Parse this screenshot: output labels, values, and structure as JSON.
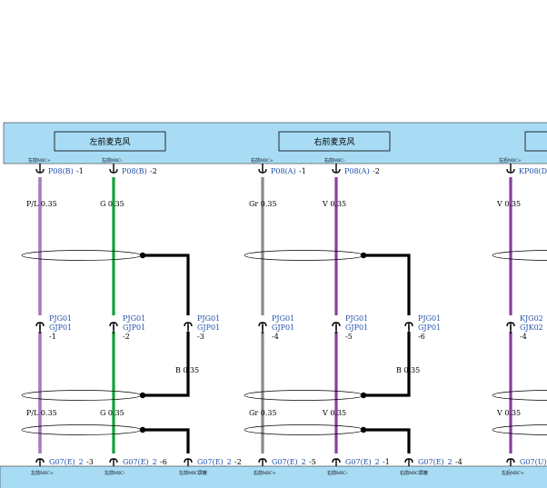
{
  "colors": {
    "header_fill": "#a8dcf5",
    "wire_PL": "#8a4fa0",
    "wire_PL_stripe": "#bfa7e8",
    "wire_G": "#13a13a",
    "wire_Gr": "#8a8a8a",
    "wire_V": "#8a3fa0",
    "wire_B": "#000000",
    "label_blue": "#1f4fa8"
  },
  "components": [
    {
      "name": "左前麦克风"
    },
    {
      "name": "右前麦克风"
    }
  ],
  "pins": [
    {
      "top_sig": "左前MIC+",
      "top_conn": "P08(B)",
      "top_pin": "-1",
      "wire": "P/L 0.35",
      "mid_conn1": "PJG01",
      "mid_conn2": "GJP01",
      "mid_pin": "-1",
      "wire_bottom": "P/L 0.35",
      "bot_conn": "G07(E)_2",
      "bot_pin": "-3",
      "bot_sig": "左前MIC+"
    },
    {
      "top_sig": "左前MIC-",
      "top_conn": "P08(B)",
      "top_pin": "-2",
      "wire": "G 0.35",
      "mid_conn1": "PJG01",
      "mid_conn2": "GJP01",
      "mid_pin": "-2",
      "wire_bottom": "G 0.35",
      "bot_conn": "G07(E)_2",
      "bot_pin": "-6",
      "bot_sig": "左前MIC-"
    },
    {
      "mid_conn1": "PJG01",
      "mid_conn2": "GJP01",
      "mid_pin": "-3",
      "wire": "B 0.35",
      "bot_conn": "G07(E)_2",
      "bot_pin": "-2",
      "bot_sig": "左前MIC屏蔽"
    },
    {
      "top_sig": "右前MIC+",
      "top_conn": "P08(A)",
      "top_pin": "-1",
      "wire": "Gr 0.35",
      "mid_conn1": "PJG01",
      "mid_conn2": "GJP01",
      "mid_pin": "-4",
      "wire_bottom": "Gr 0.35",
      "bot_conn": "G07(E)_2",
      "bot_pin": "-5",
      "bot_sig": "右前MIC+"
    },
    {
      "top_sig": "右前MIC-",
      "top_conn": "P08(A)",
      "top_pin": "-2",
      "wire": "V 0.35",
      "mid_conn1": "PJG01",
      "mid_conn2": "GJP01",
      "mid_pin": "-5",
      "wire_bottom": "V 0.35",
      "bot_conn": "G07(E)_2",
      "bot_pin": "-1",
      "bot_sig": "右前MIC-"
    },
    {
      "mid_conn1": "PJG01",
      "mid_conn2": "GJP01",
      "mid_pin": "-6",
      "wire": "B 0.35",
      "bot_conn": "G07(E)_2",
      "bot_pin": "-4",
      "bot_sig": "右前MIC屏蔽"
    },
    {
      "top_sig": "左后MIC+",
      "top_conn": "KP08(D",
      "wire": "V 0.35",
      "mid_conn1": "KJG02",
      "mid_conn2": "GJK02",
      "mid_pin": "-4",
      "wire_bottom": "V 0.35",
      "bot_conn": "G07(U)_",
      "bot_sig": "左后MIC+"
    }
  ]
}
